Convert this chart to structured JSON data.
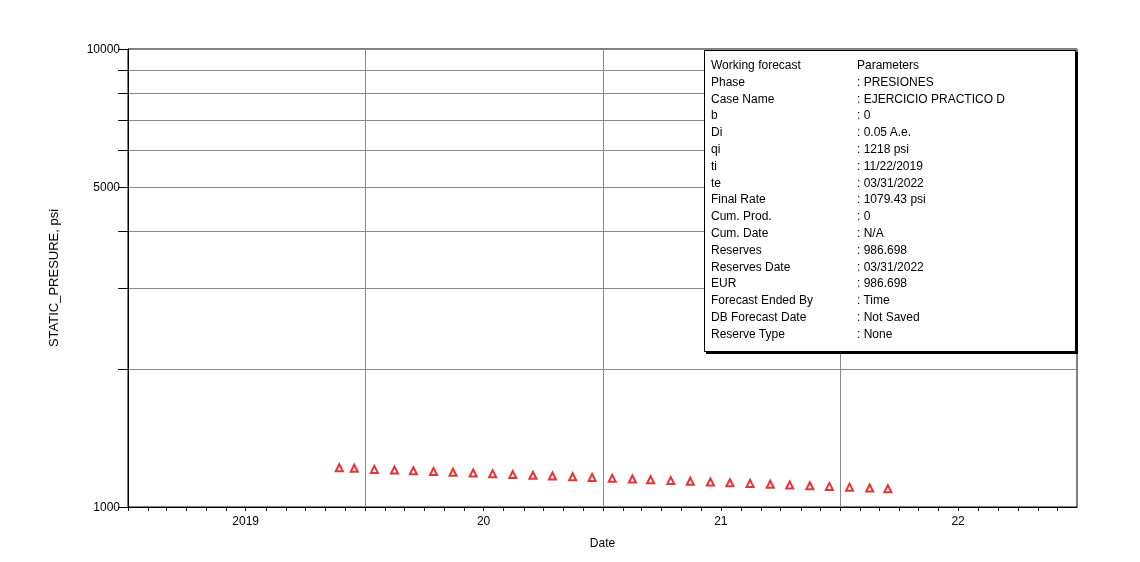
{
  "chart_data": {
    "type": "scatter",
    "xlabel": "Date",
    "ylabel": "STATIC_PRESURE, psi",
    "log": "y",
    "grid": true,
    "marker": "triangle",
    "x": [
      "2019-11-22",
      "2019-12-15",
      "2020-01-15",
      "2020-02-15",
      "2020-03-15",
      "2020-04-15",
      "2020-05-15",
      "2020-06-15",
      "2020-07-15",
      "2020-08-15",
      "2020-09-15",
      "2020-10-15",
      "2020-11-15",
      "2020-12-15",
      "2021-01-15",
      "2021-02-15",
      "2021-03-15",
      "2021-04-15",
      "2021-05-15",
      "2021-06-15",
      "2021-07-15",
      "2021-08-15",
      "2021-09-15",
      "2021-10-15",
      "2021-11-15",
      "2021-12-15",
      "2022-01-15",
      "2022-02-15",
      "2022-03-15"
    ],
    "series": [
      {
        "color": "#e00000",
        "values": [
          1218,
          1215,
          1208,
          1204,
          1200,
          1195,
          1191,
          1186,
          1182,
          1177,
          1173,
          1169,
          1164,
          1160,
          1155,
          1151,
          1147,
          1142,
          1138,
          1134,
          1130,
          1126,
          1121,
          1117,
          1113,
          1109,
          1105,
          1100,
          1096
        ]
      }
    ],
    "xlim": [
      "2019-01-01",
      "2022-12-31"
    ],
    "xticks": [
      {
        "value": "2019-01-01",
        "label": null
      },
      {
        "value": "2019-02-01",
        "label": null
      },
      {
        "value": "2019-03-01",
        "label": null
      },
      {
        "value": "2019-04-01",
        "label": null
      },
      {
        "value": "2019-05-01",
        "label": null
      },
      {
        "value": "2019-06-01",
        "label": null
      },
      {
        "value": "2019-07-01",
        "label": "2019"
      },
      {
        "value": "2019-08-01",
        "label": null
      },
      {
        "value": "2019-09-01",
        "label": null
      },
      {
        "value": "2019-10-01",
        "label": null
      },
      {
        "value": "2019-11-01",
        "label": null
      },
      {
        "value": "2019-12-01",
        "label": null
      },
      {
        "value": "2020-01-01",
        "label": null
      },
      {
        "value": "2020-02-01",
        "label": null
      },
      {
        "value": "2020-03-01",
        "label": null
      },
      {
        "value": "2020-04-01",
        "label": null
      },
      {
        "value": "2020-05-01",
        "label": null
      },
      {
        "value": "2020-06-01",
        "label": null
      },
      {
        "value": "2020-07-01",
        "label": "20"
      },
      {
        "value": "2020-08-01",
        "label": null
      },
      {
        "value": "2020-09-01",
        "label": null
      },
      {
        "value": "2020-10-01",
        "label": null
      },
      {
        "value": "2020-11-01",
        "label": null
      },
      {
        "value": "2020-12-01",
        "label": null
      },
      {
        "value": "2021-01-01",
        "label": null
      },
      {
        "value": "2021-02-01",
        "label": null
      },
      {
        "value": "2021-03-01",
        "label": null
      },
      {
        "value": "2021-04-01",
        "label": null
      },
      {
        "value": "2021-05-01",
        "label": null
      },
      {
        "value": "2021-06-01",
        "label": null
      },
      {
        "value": "2021-07-01",
        "label": "21"
      },
      {
        "value": "2021-08-01",
        "label": null
      },
      {
        "value": "2021-09-01",
        "label": null
      },
      {
        "value": "2021-10-01",
        "label": null
      },
      {
        "value": "2021-11-01",
        "label": null
      },
      {
        "value": "2021-12-01",
        "label": null
      },
      {
        "value": "2022-01-01",
        "label": null
      },
      {
        "value": "2022-02-01",
        "label": null
      },
      {
        "value": "2022-03-01",
        "label": null
      },
      {
        "value": "2022-04-01",
        "label": null
      },
      {
        "value": "2022-05-01",
        "label": null
      },
      {
        "value": "2022-06-01",
        "label": null
      },
      {
        "value": "2022-07-01",
        "label": "22"
      },
      {
        "value": "2022-08-01",
        "label": null
      },
      {
        "value": "2022-09-01",
        "label": null
      },
      {
        "value": "2022-10-01",
        "label": null
      },
      {
        "value": "2022-11-01",
        "label": null
      },
      {
        "value": "2022-12-01",
        "label": null
      }
    ],
    "ylim": [
      1000,
      10000
    ],
    "yticks": [
      1000,
      {
        "value": 2000,
        "label": null
      },
      {
        "value": 3000,
        "label": null
      },
      {
        "value": 4000,
        "label": null
      },
      5000,
      {
        "value": 6000,
        "label": null
      },
      {
        "value": 7000,
        "label": null
      },
      {
        "value": 8000,
        "label": null
      },
      {
        "value": 9000,
        "label": null
      },
      10000
    ],
    "annotations": [
      "Working forecast\tParameters",
      "Phase\t: PRESIONES",
      "Case Name\t: EJERCICIO PRACTICO D",
      "b\t: 0",
      "Di\t: 0.05 A.e.",
      "qi\t: 1218 psi",
      "ti\t: 11/22/2019",
      "te\t: 03/31/2022",
      "Final Rate\t: 1079.43 psi",
      "Cum. Prod.\t: 0",
      "Cum. Date\t: N/A",
      "Reserves\t: 986.698",
      "Reserves Date\t: 03/31/2022",
      "EUR\t: 986.698",
      "Forecast Ended By\t: Time",
      "DB Forecast Date\t: Not Saved",
      "Reserve Type\t: None"
    ]
  }
}
